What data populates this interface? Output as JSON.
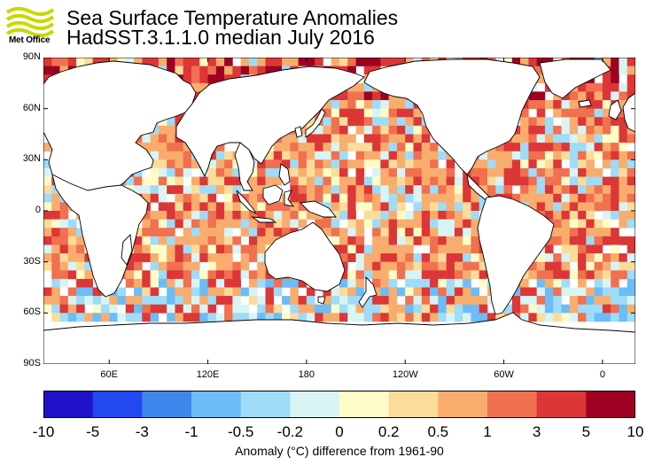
{
  "logo": {
    "name": "met-office-logo",
    "text": "Met Office",
    "color": "#c8d900"
  },
  "title": {
    "line1": "Sea Surface Temperature Anomalies",
    "line2": "HadSST.3.1.1.0 median July 2016"
  },
  "map": {
    "projection": "equirectangular",
    "lon_range": [
      20,
      380
    ],
    "lat_range": [
      -90,
      90
    ],
    "lat_ticks": [
      {
        "value": 90,
        "label": "90N"
      },
      {
        "value": 60,
        "label": "60N"
      },
      {
        "value": 30,
        "label": "30N"
      },
      {
        "value": 0,
        "label": "0"
      },
      {
        "value": -30,
        "label": "30S"
      },
      {
        "value": -60,
        "label": "60S"
      },
      {
        "value": -90,
        "label": "90S"
      }
    ],
    "lon_ticks": [
      {
        "value": 60,
        "label": "60E"
      },
      {
        "value": 120,
        "label": "120E"
      },
      {
        "value": 180,
        "label": "180"
      },
      {
        "value": 240,
        "label": "120W"
      },
      {
        "value": 300,
        "label": "60W"
      },
      {
        "value": 360,
        "label": "0"
      }
    ],
    "grid_cell_degrees": 5,
    "land_color": "#ffffff",
    "ocean_background": "#ffffff"
  },
  "colorbar": {
    "boundaries": [
      "-10",
      "-5",
      "-3",
      "-1",
      "-0.5",
      "-0.2",
      "0",
      "0.2",
      "0.5",
      "1",
      "3",
      "5",
      "10"
    ],
    "colors": [
      "#1f12c8",
      "#2248f0",
      "#3c86ec",
      "#6cbcf6",
      "#9edcf8",
      "#d8f4f4",
      "#fefcc6",
      "#fbdc9a",
      "#f8ad6e",
      "#f0704f",
      "#dc3636",
      "#9e0022"
    ],
    "caption": "Anomaly (°C) difference from 1961-90"
  }
}
